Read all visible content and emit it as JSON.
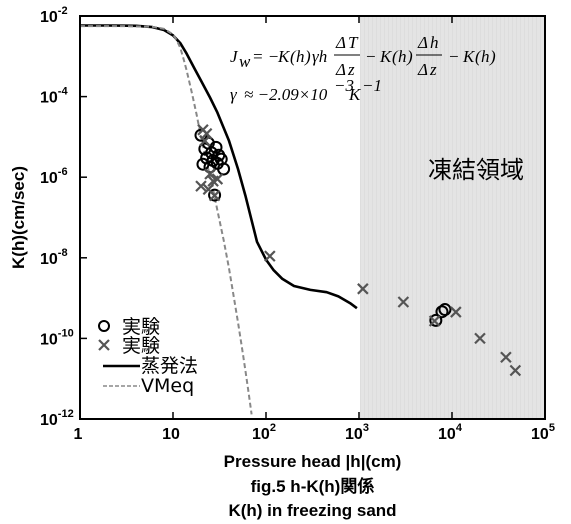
{
  "chart_data": {
    "type": "scatter",
    "title": "",
    "xlabel": "Pressure head |h|(cm)",
    "ylabel": "K(h)(cm/sec)",
    "x_scale": "log",
    "y_scale": "log",
    "xlim": [
      1,
      100000
    ],
    "ylim": [
      1e-12,
      0.01
    ],
    "x_ticks": [
      {
        "base": "1",
        "exp": ""
      },
      {
        "base": "10",
        "exp": ""
      },
      {
        "base": "10",
        "exp": "2"
      },
      {
        "base": "10",
        "exp": "3"
      },
      {
        "base": "10",
        "exp": "4"
      },
      {
        "base": "10",
        "exp": "5"
      }
    ],
    "y_ticks": [
      {
        "base": "10",
        "exp": "-12"
      },
      {
        "base": "10",
        "exp": "-10"
      },
      {
        "base": "10",
        "exp": "-8"
      },
      {
        "base": "10",
        "exp": "-6"
      },
      {
        "base": "10",
        "exp": "-4"
      },
      {
        "base": "10",
        "exp": "-2"
      }
    ],
    "frozen_region": {
      "label": "凍結領域",
      "x_from": 1000,
      "x_to": 100000,
      "color": "#e4e4e4"
    },
    "equation_line1": "J_w = −K(h)γh ΔT/Δz − K(h) Δh/Δz − K(h)",
    "equation_line2": "γ ≈ −2.09×10⁻³ K⁻¹",
    "series": [
      {
        "name": "実験",
        "marker": "circle",
        "color": "#000000",
        "points": [
          [
            20,
            1.1e-05
          ],
          [
            21,
            2.1e-06
          ],
          [
            22,
            5e-06
          ],
          [
            23,
            3e-06
          ],
          [
            24,
            7e-06
          ],
          [
            25,
            1.8e-06
          ],
          [
            26,
            4e-06
          ],
          [
            27,
            2.6e-06
          ],
          [
            28,
            3.6e-07
          ],
          [
            29,
            5.5e-06
          ],
          [
            30,
            2.2e-06
          ],
          [
            31,
            3.5e-06
          ],
          [
            33,
            2.8e-06
          ],
          [
            35,
            1.6e-06
          ],
          [
            6700,
            2.8e-10
          ],
          [
            7800,
            4.6e-10
          ],
          [
            8400,
            5.2e-10
          ]
        ]
      },
      {
        "name": "実験",
        "marker": "x",
        "color": "#555555",
        "points": [
          [
            20,
            6e-07
          ],
          [
            21,
            1.5e-05
          ],
          [
            22,
            8e-06
          ],
          [
            23,
            1.2e-05
          ],
          [
            24,
            5e-07
          ],
          [
            25,
            1.2e-06
          ],
          [
            27,
            8e-07
          ],
          [
            28,
            3.5e-07
          ],
          [
            30,
            9e-07
          ],
          [
            110,
            1.1e-08
          ],
          [
            1100,
            1.7e-09
          ],
          [
            3000,
            8e-10
          ],
          [
            6500,
            2.7e-10
          ],
          [
            11000,
            4.5e-10
          ],
          [
            20000,
            1e-10
          ],
          [
            38000,
            3.4e-11
          ],
          [
            48000,
            1.6e-11
          ]
        ]
      },
      {
        "name": "蒸発法",
        "type": "line",
        "style": "solid",
        "color": "#000000",
        "points": [
          [
            1,
            0.0058
          ],
          [
            2,
            0.0058
          ],
          [
            4,
            0.0057
          ],
          [
            6,
            0.0053
          ],
          [
            8,
            0.0045
          ],
          [
            10,
            0.0033
          ],
          [
            12,
            0.0021
          ],
          [
            14,
            0.00117
          ],
          [
            17,
            0.0005
          ],
          [
            20,
            0.00025
          ],
          [
            25,
            9.5e-05
          ],
          [
            30,
            4e-05
          ],
          [
            40,
            8e-06
          ],
          [
            50,
            1.6e-06
          ],
          [
            60,
            3.5e-07
          ],
          [
            70,
            8.5e-08
          ],
          [
            80,
            2.5e-08
          ],
          [
            100,
            9e-09
          ],
          [
            120,
            5e-09
          ],
          [
            150,
            3e-09
          ],
          [
            200,
            2e-09
          ],
          [
            300,
            1.6e-09
          ],
          [
            450,
            1.4e-09
          ],
          [
            600,
            1.1e-09
          ],
          [
            800,
            7.5e-10
          ],
          [
            950,
            5.6e-10
          ]
        ]
      },
      {
        "name": "VMeq",
        "type": "line",
        "style": "dashed",
        "color": "#888888",
        "points": [
          [
            1,
            0.0056
          ],
          [
            3,
            0.0056
          ],
          [
            6,
            0.0054
          ],
          [
            8,
            0.0048
          ],
          [
            10,
            0.0035
          ],
          [
            11,
            0.0025
          ],
          [
            12,
            0.0016
          ],
          [
            13,
            0.00085
          ],
          [
            14,
            0.00045
          ],
          [
            16,
            0.00012
          ],
          [
            18,
            3.5e-05
          ],
          [
            20,
            1e-05
          ],
          [
            23,
            2.4e-06
          ],
          [
            27,
            5e-07
          ],
          [
            30,
            1.5e-07
          ],
          [
            35,
            2.8e-08
          ],
          [
            40,
            5.5e-09
          ],
          [
            45,
            1.1e-09
          ],
          [
            50,
            2.5e-10
          ],
          [
            55,
            6e-11
          ],
          [
            60,
            1.6e-11
          ],
          [
            65,
            4.5e-12
          ],
          [
            70,
            1.3e-12
          ]
        ]
      }
    ],
    "legend_position": "bottom-left"
  },
  "caption": {
    "line1": "fig.5 h-K(h)関係",
    "line2": "K(h) in freezing sand"
  }
}
